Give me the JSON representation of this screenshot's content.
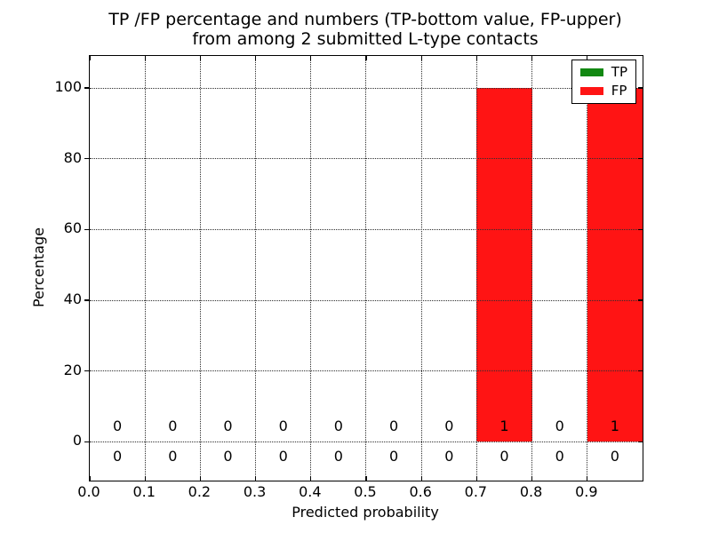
{
  "chart_data": {
    "type": "bar",
    "title": "TP /FP percentage and numbers (TP-bottom value, FP-upper)\nfrom among 2 submitted L-type contacts",
    "title_lines": [
      "TP /FP percentage and numbers (TP-bottom value, FP-upper)",
      "from among 2 submitted L-type contacts"
    ],
    "xlabel": "Predicted probability",
    "ylabel": "Percentage",
    "xlim": [
      0.0,
      1.0
    ],
    "ylim": [
      -11,
      109
    ],
    "xticks": [
      "0.0",
      "0.1",
      "0.2",
      "0.3",
      "0.4",
      "0.5",
      "0.6",
      "0.7",
      "0.8",
      "0.9"
    ],
    "yticks": [
      0,
      20,
      40,
      60,
      80,
      100
    ],
    "grid": true,
    "grid_linestyle": "dotted",
    "bin_edges": [
      0.0,
      0.1,
      0.2,
      0.3,
      0.4,
      0.5,
      0.6,
      0.7,
      0.8,
      0.9,
      1.0
    ],
    "series": [
      {
        "name": "TP",
        "color": "#128812",
        "percentages": [
          0,
          0,
          0,
          0,
          0,
          0,
          0,
          0,
          0,
          0
        ],
        "counts": [
          0,
          0,
          0,
          0,
          0,
          0,
          0,
          0,
          0,
          0
        ],
        "count_row": "bottom"
      },
      {
        "name": "FP",
        "color": "#ff1414",
        "percentages": [
          0,
          0,
          0,
          0,
          0,
          0,
          0,
          100,
          0,
          100
        ],
        "counts": [
          0,
          0,
          0,
          0,
          0,
          0,
          0,
          1,
          0,
          1
        ],
        "count_row": "top"
      }
    ],
    "legend": {
      "position": "upper right",
      "entries": [
        "TP",
        "FP"
      ]
    }
  }
}
